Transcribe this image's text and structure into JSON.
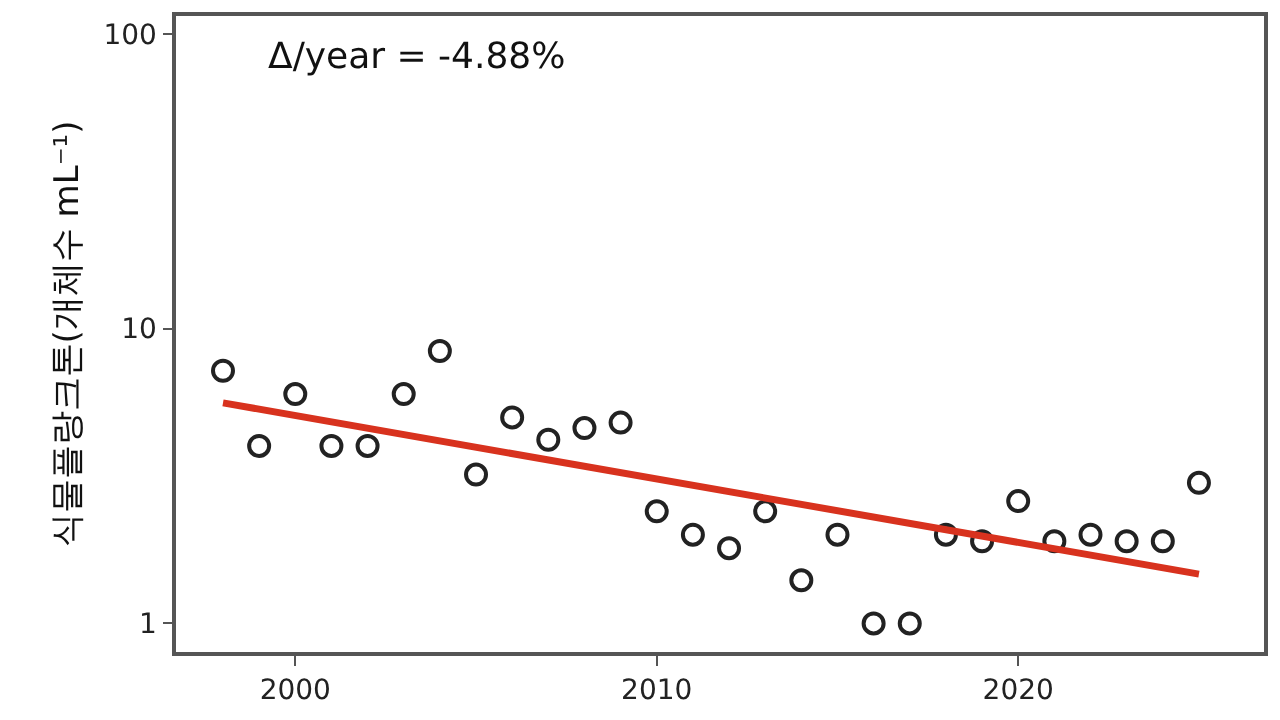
{
  "chart_data": {
    "type": "scatter",
    "ylabel": "식물플랑크톤(개체수 mL⁻¹)",
    "annotations": [
      "Δ/year = -4.88%"
    ],
    "log": "y",
    "xlim": [
      1996.7,
      2026.8
    ],
    "xticks": [
      2000,
      2010,
      2020
    ],
    "ylim": [
      0.8,
      115
    ],
    "yticks": [
      1,
      10,
      100
    ],
    "x": [
      1998,
      1999,
      2000,
      2001,
      2002,
      2003,
      2004,
      2005,
      2006,
      2007,
      2008,
      2009,
      2010,
      2011,
      2012,
      2013,
      2014,
      2015,
      2016,
      2017,
      2018,
      2019,
      2020,
      2021,
      2022,
      2023,
      2024,
      2025
    ],
    "series": [
      {
        "color": "#222222",
        "marker": "circle",
        "values": [
          7.2,
          4.0,
          6.0,
          4.0,
          4.0,
          6.0,
          8.4,
          3.2,
          5.0,
          4.2,
          4.6,
          4.8,
          2.4,
          2.0,
          1.8,
          2.4,
          1.4,
          2.0,
          1.0,
          1.0,
          2.0,
          1.9,
          2.6,
          1.9,
          2.0,
          1.9,
          1.9,
          3.0
        ]
      },
      {
        "type": "line",
        "color": "#d8321e",
        "x": [
          1998,
          2025
        ],
        "values": [
          5.6,
          1.47
        ]
      }
    ]
  }
}
